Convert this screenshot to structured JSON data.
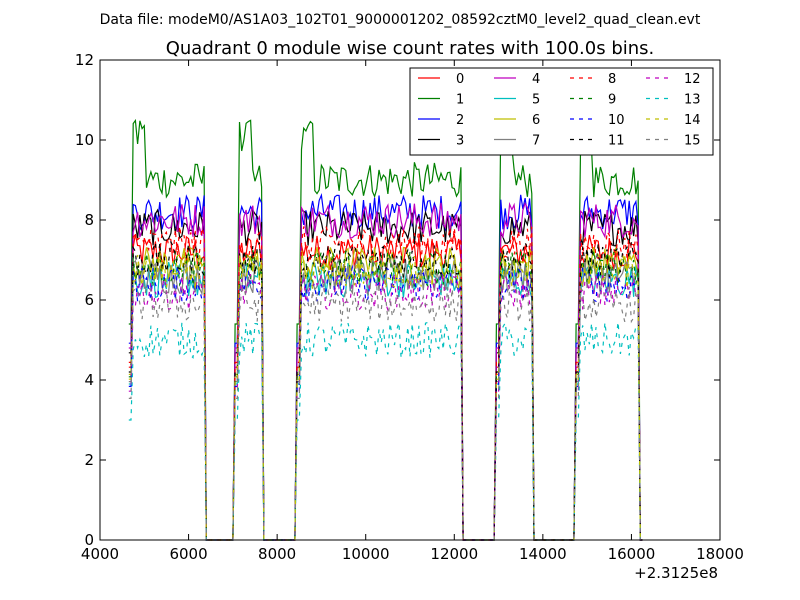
{
  "header_text": "Data file: modeM0/AS1A03_102T01_9000001202_08592cztM0_level2_quad_clean.evt",
  "chart_data": {
    "type": "line",
    "title": "Quadrant 0 module wise count rates with 100.0s bins.",
    "xlabel": "",
    "ylabel": "",
    "x_offset_label": "+2.3125e8",
    "xlim": [
      4000,
      18000
    ],
    "ylim": [
      0,
      12
    ],
    "x_ticks": [
      "4000",
      "6000",
      "8000",
      "10000",
      "12000",
      "14000",
      "16000",
      "18000"
    ],
    "y_ticks": [
      "0",
      "2",
      "4",
      "6",
      "8",
      "10",
      "12"
    ],
    "grid": false,
    "legend_position": "top-right",
    "legend_columns": 4,
    "segments": [
      {
        "start": 4650,
        "end": 6350
      },
      {
        "start": 7050,
        "end": 7650
      },
      {
        "start": 8450,
        "end": 12150
      },
      {
        "start": 12950,
        "end": 13750
      },
      {
        "start": 14750,
        "end": 16150
      }
    ],
    "series": [
      {
        "name": "0",
        "color": "#ff0000",
        "dash": "solid",
        "level": 7.2
      },
      {
        "name": "1",
        "color": "#008000",
        "dash": "solid",
        "level": 9.0
      },
      {
        "name": "2",
        "color": "#0000ff",
        "dash": "solid",
        "level": 8.2
      },
      {
        "name": "3",
        "color": "#000000",
        "dash": "solid",
        "level": 7.8
      },
      {
        "name": "4",
        "color": "#bf00bf",
        "dash": "solid",
        "level": 8.0
      },
      {
        "name": "5",
        "color": "#00bfbf",
        "dash": "solid",
        "level": 6.5
      },
      {
        "name": "6",
        "color": "#bfbf00",
        "dash": "solid",
        "level": 6.9
      },
      {
        "name": "7",
        "color": "#808080",
        "dash": "solid",
        "level": 6.6
      },
      {
        "name": "8",
        "color": "#ff0000",
        "dash": "dashed",
        "level": 7.4
      },
      {
        "name": "9",
        "color": "#008000",
        "dash": "dashed",
        "level": 6.8
      },
      {
        "name": "10",
        "color": "#0000ff",
        "dash": "dashed",
        "level": 6.4
      },
      {
        "name": "11",
        "color": "#000000",
        "dash": "dashed",
        "level": 7.0
      },
      {
        "name": "12",
        "color": "#bf00bf",
        "dash": "dashed",
        "level": 6.2
      },
      {
        "name": "13",
        "color": "#00bfbf",
        "dash": "dashed",
        "level": 5.0
      },
      {
        "name": "14",
        "color": "#bfbf00",
        "dash": "dashed",
        "level": 6.7
      },
      {
        "name": "15",
        "color": "#808080",
        "dash": "dashed",
        "level": 5.9
      }
    ]
  }
}
